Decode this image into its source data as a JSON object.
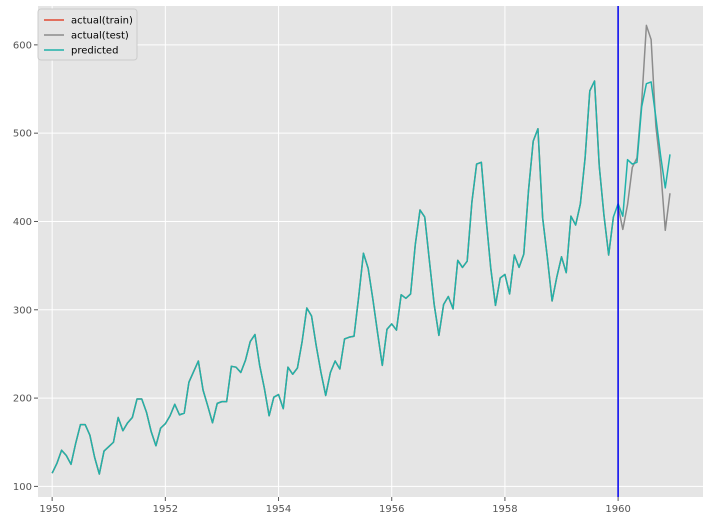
{
  "chart_data": {
    "type": "line",
    "title": "",
    "xlabel": "",
    "ylabel": "",
    "xlim": [
      1949.75,
      1961.5
    ],
    "ylim": [
      88,
      644
    ],
    "x_ticks": [
      1950,
      1952,
      1954,
      1956,
      1958,
      1960
    ],
    "y_ticks": [
      100,
      200,
      300,
      400,
      500,
      600
    ],
    "x_tick_labels": [
      "1950",
      "1952",
      "1954",
      "1956",
      "1958",
      "1960"
    ],
    "y_tick_labels": [
      "100",
      "200",
      "300",
      "400",
      "500",
      "600"
    ],
    "grid": true,
    "legend_position": "top-left",
    "x_start": 1950,
    "x_step": 0.08333333,
    "vertical_line": {
      "x": 1960,
      "color": "#0000ee"
    },
    "series": [
      {
        "name": "actual(train)",
        "color": "#e24a33",
        "start_index": 0,
        "values": [
          115,
          126,
          141,
          135,
          125,
          149,
          170,
          170,
          158,
          133,
          114,
          140,
          145,
          150,
          178,
          163,
          172,
          178,
          199,
          199,
          184,
          162,
          146,
          166,
          171,
          180,
          193,
          181,
          183,
          218,
          230,
          242,
          209,
          191,
          172,
          194,
          196,
          196,
          236,
          235,
          229,
          243,
          264,
          272,
          237,
          211,
          180,
          201,
          204,
          188,
          235,
          227,
          234,
          264,
          302,
          293,
          259,
          229,
          203,
          229,
          242,
          233,
          267,
          269,
          270,
          315,
          364,
          347,
          312,
          274,
          237,
          278,
          284,
          277,
          317,
          313,
          318,
          374,
          413,
          405,
          355,
          306,
          271,
          306,
          315,
          301,
          356,
          348,
          355,
          422,
          465,
          467,
          404,
          347,
          305,
          336,
          340,
          318,
          362,
          348,
          363,
          435,
          491,
          505,
          404,
          359,
          310,
          337,
          360,
          342,
          406,
          396,
          420,
          472,
          548,
          559,
          463,
          407,
          362,
          405
        ]
      },
      {
        "name": "actual(test)",
        "color": "#8c8c8c",
        "start_index": 120,
        "values": [
          417,
          391,
          419,
          461,
          472,
          535,
          622,
          606,
          508,
          461,
          390,
          432
        ]
      },
      {
        "name": "predicted",
        "color": "#20b2aa",
        "start_index": 0,
        "values": [
          115,
          126,
          141,
          135,
          125,
          149,
          170,
          170,
          158,
          133,
          114,
          140,
          145,
          150,
          178,
          163,
          172,
          178,
          199,
          199,
          184,
          162,
          146,
          166,
          171,
          180,
          193,
          181,
          183,
          218,
          230,
          242,
          209,
          191,
          172,
          194,
          196,
          196,
          236,
          235,
          229,
          243,
          264,
          272,
          237,
          211,
          180,
          201,
          204,
          188,
          235,
          227,
          234,
          264,
          302,
          293,
          259,
          229,
          203,
          229,
          242,
          233,
          267,
          269,
          270,
          315,
          364,
          347,
          312,
          274,
          237,
          278,
          284,
          277,
          317,
          313,
          318,
          374,
          413,
          405,
          355,
          306,
          271,
          306,
          315,
          301,
          356,
          348,
          355,
          422,
          465,
          467,
          404,
          347,
          305,
          336,
          340,
          318,
          362,
          348,
          363,
          435,
          491,
          505,
          404,
          359,
          310,
          337,
          360,
          342,
          406,
          396,
          420,
          472,
          548,
          559,
          463,
          407,
          362,
          405,
          420,
          406,
          470,
          465,
          467,
          530,
          556,
          558,
          518,
          475,
          438,
          476
        ]
      }
    ],
    "colors": {
      "panel_background": "#e5e5e5",
      "grid": "#ffffff",
      "tick_label": "#555555"
    }
  }
}
